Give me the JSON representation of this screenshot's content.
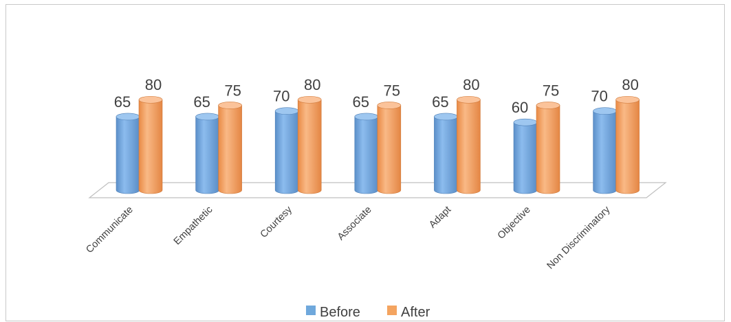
{
  "chart_data": {
    "type": "bar",
    "style": "3d-cylinder",
    "categories": [
      "Communicate",
      "Empathetic",
      "Courtesy",
      "Associate",
      "Adapt",
      "Objective",
      "Non Discriminatory"
    ],
    "series": [
      {
        "name": "Before",
        "color": "#6fa8dc",
        "values": [
          65,
          65,
          70,
          65,
          65,
          60,
          70
        ]
      },
      {
        "name": "After",
        "color": "#f4a460",
        "values": [
          80,
          75,
          80,
          75,
          80,
          75,
          80
        ]
      }
    ],
    "data_labels": true,
    "legend_position": "bottom",
    "grid": false
  }
}
